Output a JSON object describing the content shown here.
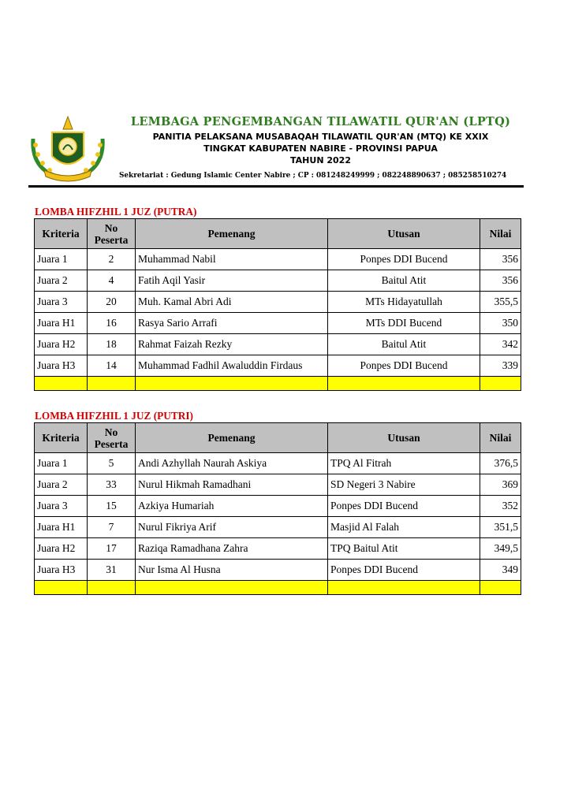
{
  "letterhead": {
    "org_name": "LEMBAGA PENGEMBANGAN TILAWATIL QUR'AN (LPTQ)",
    "line1": "PANITIA PELAKSANA MUSABAQAH TILAWATIL QUR'AN (MTQ) KE XXIX",
    "line2": "TINGKAT KABUPATEN NABIRE - PROVINSI PAPUA",
    "line3": "TAHUN 2022",
    "secretariat": "Sekretariat : Gedung Islamic Center Nabire ; CP : 081248249999 ; 082248890637 ; 085258510274",
    "logo_icon": "lptq-emblem-icon",
    "colors": {
      "org_name": "#2f7d1f",
      "section_title": "#d10000",
      "header_bg": "#c0c0c0",
      "blank_row": "#ffff00"
    }
  },
  "headers": [
    "Kriteria",
    "No Peserta",
    "Pemenang",
    "Utusan",
    "Nilai"
  ],
  "sections": [
    {
      "title": "LOMBA HIFZHIL 1 JUZ (PUTRA)",
      "rows": [
        [
          "Juara 1",
          "2",
          "Muhammad Nabil",
          "Ponpes DDI Bucend",
          "356"
        ],
        [
          "Juara 2",
          "4",
          "Fatih Aqil Yasir",
          "Baitul Atit",
          "356"
        ],
        [
          "Juara 3",
          "20",
          "Muh. Kamal Abri Adi",
          "MTs Hidayatullah",
          "355,5"
        ],
        [
          "Juara H1",
          "16",
          "Rasya Sario Arrafi",
          "MTs DDI Bucend",
          "350"
        ],
        [
          "Juara H2",
          "18",
          "Rahmat Faizah Rezky",
          "Baitul Atit",
          "342"
        ],
        [
          "Juara H3",
          "14",
          "Muhammad Fadhil Awaluddin Firdaus",
          "Ponpes DDI Bucend",
          "339"
        ]
      ]
    },
    {
      "title": "LOMBA HIFZHIL 1 JUZ (PUTRI)",
      "rows": [
        [
          "Juara 1",
          "5",
          "Andi Azhyllah Naurah Askiya",
          "TPQ Al Fitrah",
          "376,5"
        ],
        [
          "Juara 2",
          "33",
          "Nurul Hikmah Ramadhani",
          "SD Negeri 3 Nabire",
          "369"
        ],
        [
          "Juara 3",
          "15",
          "Azkiya Humariah",
          "Ponpes DDI Bucend",
          "352"
        ],
        [
          "Juara H1",
          "7",
          "Nurul Fikriya Arif",
          "Masjid Al Falah",
          "351,5"
        ],
        [
          "Juara H2",
          "17",
          "Raziqa Ramadhana Zahra",
          "TPQ Baitul Atit",
          "349,5"
        ],
        [
          "Juara H3",
          "31",
          "Nur Isma Al Husna",
          "Ponpes DDI Bucend",
          "349"
        ]
      ]
    }
  ]
}
